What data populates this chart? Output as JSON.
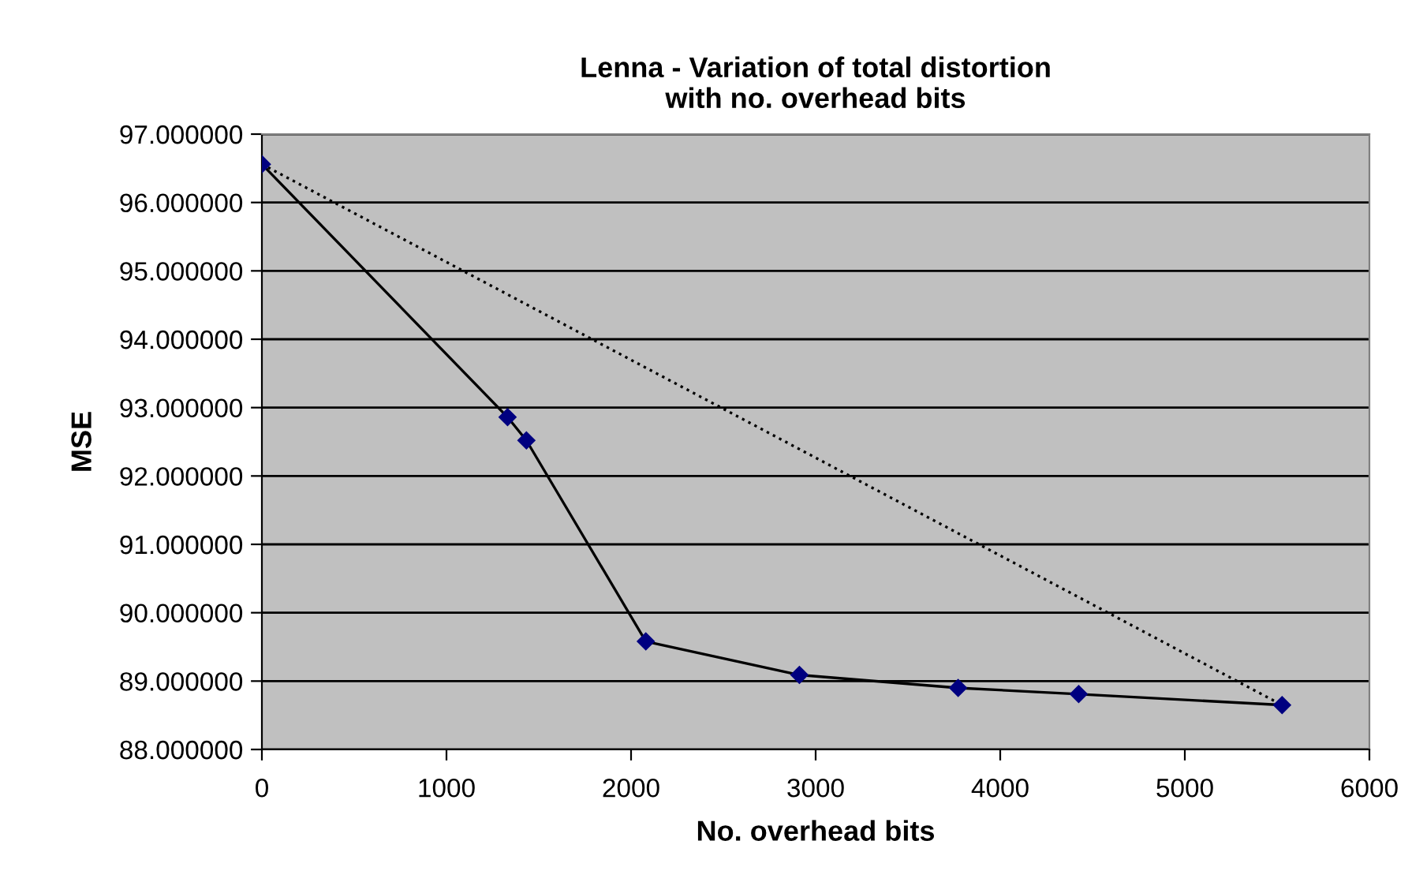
{
  "chart_data": {
    "type": "line",
    "title": "Lenna - Variation of total distortion\nwith no. overhead bits",
    "xlabel": "No. overhead bits",
    "ylabel": "MSE",
    "series": [
      {
        "x": [
          0,
          1331,
          1433,
          2080,
          2912,
          3772,
          4425,
          5527
        ],
        "values": [
          96.56,
          92.86,
          92.52,
          89.58,
          89.09,
          88.9,
          88.81,
          88.65
        ],
        "color": "#000000",
        "colors": [
          "#000080",
          "#000080",
          "#000080",
          "#000080",
          "#000080",
          "#000080",
          "#000080",
          "#000080"
        ],
        "marker": "diamond",
        "line_style": "solid"
      },
      {
        "x": [
          0,
          5527
        ],
        "values": [
          96.56,
          88.65
        ],
        "color": "#000000",
        "marker": "none",
        "line_style": "dotted"
      }
    ],
    "xlim": [
      0,
      6000
    ],
    "xticks": [
      0,
      1000,
      2000,
      3000,
      4000,
      5000,
      6000
    ],
    "ylim": [
      88,
      97
    ],
    "yticks": [
      {
        "value": 88,
        "label": "88.000000"
      },
      {
        "value": 89,
        "label": "89.000000"
      },
      {
        "value": 90,
        "label": "90.000000"
      },
      {
        "value": 91,
        "label": "91.000000"
      },
      {
        "value": 92,
        "label": "92.000000"
      },
      {
        "value": 93,
        "label": "93.000000"
      },
      {
        "value": 94,
        "label": "94.000000"
      },
      {
        "value": 95,
        "label": "95.000000"
      },
      {
        "value": 96,
        "label": "96.000000"
      },
      {
        "value": 97,
        "label": "97.000000"
      }
    ],
    "grid": "y",
    "legend": false
  }
}
